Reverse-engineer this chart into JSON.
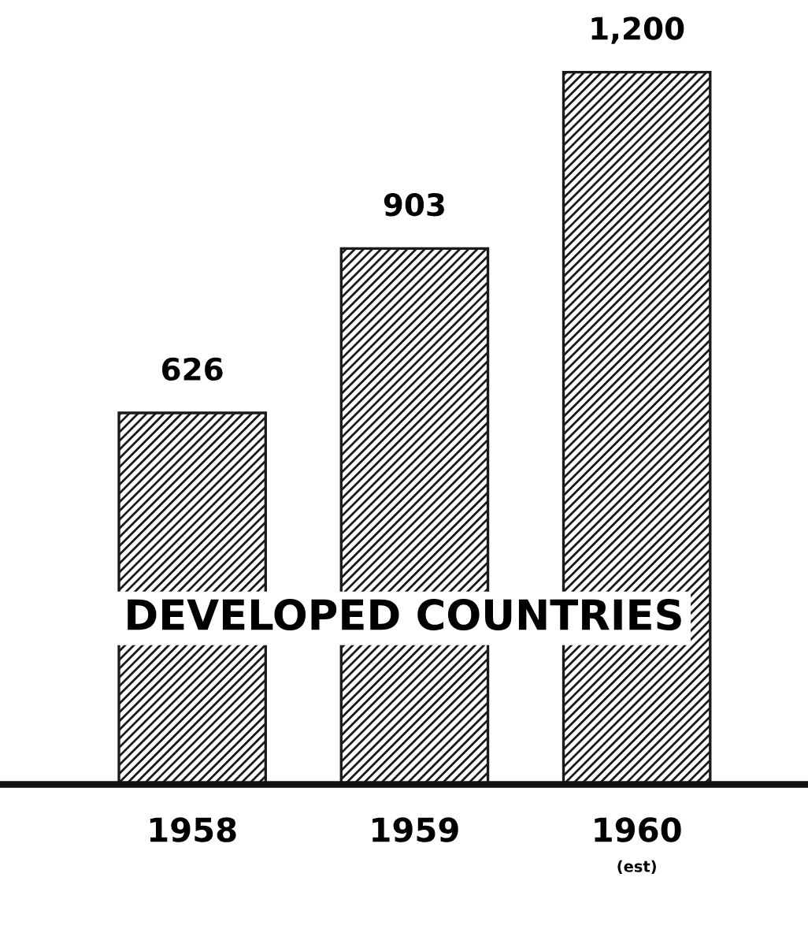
{
  "chart_data": {
    "type": "bar",
    "categories": [
      "1958",
      "1959",
      "1960 (est)"
    ],
    "values": [
      626,
      903,
      1200
    ],
    "color": "#1a1a1a",
    "data_labels": true,
    "value_labels": [
      "626",
      "903",
      "1,200"
    ],
    "annotations": [
      "DEVELOPED COUNTRIES"
    ],
    "relative": false,
    "grid": false,
    "legend": false
  }
}
